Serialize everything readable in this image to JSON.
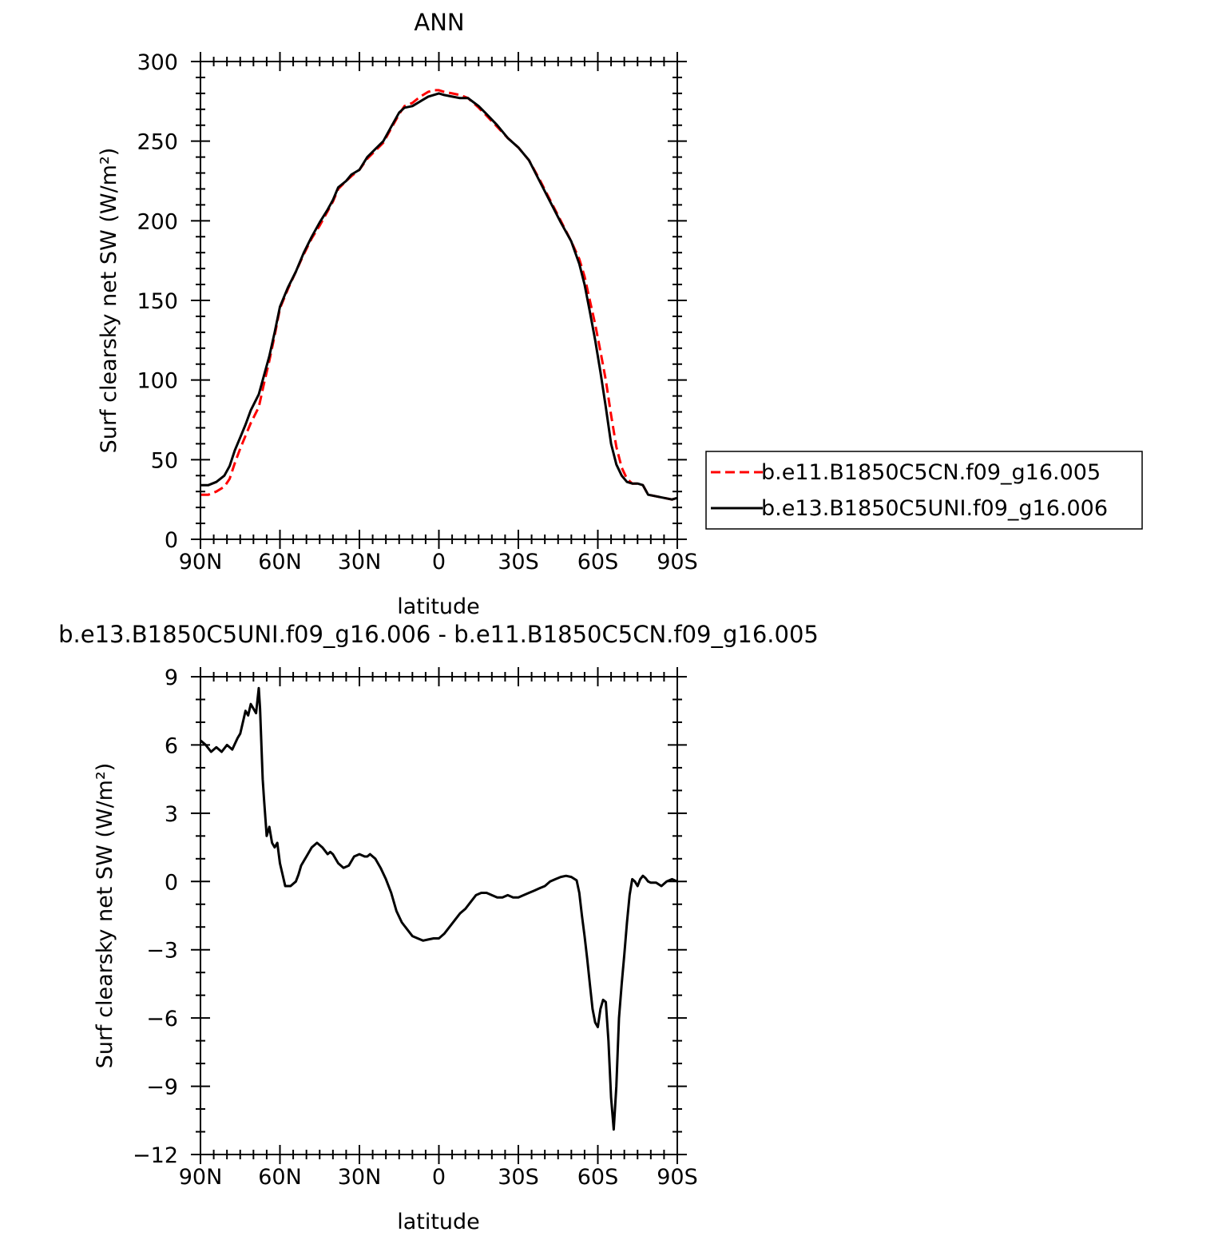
{
  "colors": {
    "control_series": "#ff0000",
    "test_series": "#000000",
    "axis": "#000000",
    "background": "#ffffff"
  },
  "chart_data": [
    {
      "type": "line",
      "title": "ANN",
      "xlabel": "latitude",
      "ylabel": "Surf clearsky net SW (W/m²)",
      "xlim": [
        90,
        -90
      ],
      "ylim": [
        0,
        300
      ],
      "x_axis_direction": "north-to-south",
      "xticks": [
        90,
        60,
        30,
        0,
        -30,
        -60,
        -90
      ],
      "xticklabels": [
        "90N",
        "60N",
        "30N",
        "0",
        "30S",
        "60S",
        "90S"
      ],
      "yticks": [
        0,
        50,
        100,
        150,
        200,
        250,
        300
      ],
      "yticklabels": [
        "0",
        "50",
        "100",
        "150",
        "200",
        "250",
        "300"
      ],
      "grid": false,
      "legend": {
        "placement": "outside-right",
        "entries": [
          "b.e11.B1850C5CN.f09_g16.005",
          "b.e13.B1850C5UNI.f09_g16.006"
        ]
      },
      "series": [
        {
          "name": "b.e11.B1850C5CN.f09_g16.005",
          "style": "dashed",
          "color": "#ff0000",
          "x": [
            90,
            87,
            84,
            81,
            79,
            77,
            75,
            73,
            71,
            68,
            66,
            64,
            62,
            60,
            57,
            54,
            51,
            48,
            45,
            42,
            40,
            38,
            35,
            33,
            30,
            27,
            24,
            21,
            18,
            15,
            13,
            10,
            7,
            4,
            2,
            0,
            -2,
            -5,
            -8,
            -11,
            -15,
            -18,
            -22,
            -26,
            -30,
            -34,
            -38,
            -42,
            -46,
            -50,
            -53,
            -55,
            -57,
            -59,
            -61,
            -63,
            -65,
            -67,
            -69,
            -71,
            -73,
            -75,
            -77,
            -79,
            -82,
            -85,
            -88,
            -90
          ],
          "y": [
            28,
            28,
            30,
            33,
            38,
            48,
            57,
            65,
            73,
            83,
            98,
            112,
            128,
            145,
            157,
            168,
            179,
            189,
            197,
            206,
            212,
            220,
            225,
            228,
            232,
            239,
            244,
            249,
            258,
            267,
            272,
            274,
            278,
            281,
            282,
            282,
            281,
            280,
            279,
            277,
            271,
            266,
            259,
            252,
            246,
            238,
            226,
            213,
            200,
            187,
            176,
            165,
            150,
            135,
            118,
            100,
            78,
            58,
            45,
            38,
            35,
            35,
            34,
            28,
            27,
            26,
            25,
            26
          ]
        },
        {
          "name": "b.e13.B1850C5UNI.f09_g16.006",
          "style": "solid",
          "color": "#000000",
          "x": [
            90,
            87,
            84,
            81,
            79,
            77,
            75,
            73,
            71,
            68,
            66,
            64,
            62,
            60,
            57,
            54,
            51,
            48,
            45,
            42,
            40,
            38,
            35,
            33,
            30,
            27,
            24,
            21,
            18,
            15,
            13,
            10,
            7,
            4,
            2,
            0,
            -2,
            -5,
            -8,
            -11,
            -15,
            -18,
            -22,
            -26,
            -30,
            -34,
            -38,
            -42,
            -46,
            -50,
            -53,
            -55,
            -57,
            -59,
            -61,
            -63,
            -65,
            -67,
            -69,
            -71,
            -73,
            -75,
            -77,
            -79,
            -82,
            -85,
            -88,
            -90
          ],
          "y": [
            34,
            34,
            36,
            40,
            46,
            56,
            64,
            72,
            81,
            91,
            103,
            115,
            130,
            146,
            158,
            168,
            180,
            190,
            199,
            207,
            213,
            221,
            225,
            229,
            232,
            240,
            245,
            250,
            259,
            268,
            271,
            272,
            275,
            278,
            279,
            280,
            279,
            278,
            277,
            277,
            272,
            267,
            260,
            252,
            246,
            238,
            225,
            212,
            199,
            187,
            173,
            160,
            143,
            125,
            105,
            83,
            60,
            47,
            40,
            36,
            35,
            35,
            34,
            28,
            27,
            26,
            25,
            26
          ]
        }
      ]
    },
    {
      "type": "line",
      "title": "b.e13.B1850C5UNI.f09_g16.006 - b.e11.B1850C5CN.f09_g16.005",
      "xlabel": "latitude",
      "ylabel": "Surf clearsky net SW (W/m²)",
      "xlim": [
        90,
        -90
      ],
      "ylim": [
        -12,
        9
      ],
      "x_axis_direction": "north-to-south",
      "xticks": [
        90,
        60,
        30,
        0,
        -30,
        -60,
        -90
      ],
      "xticklabels": [
        "90N",
        "60N",
        "30N",
        "0",
        "30S",
        "60S",
        "90S"
      ],
      "yticks": [
        -12,
        -9,
        -6,
        -3,
        0,
        3,
        6,
        9
      ],
      "yticklabels": [
        "−12",
        "−9",
        "−6",
        "−3",
        "0",
        "3",
        "6",
        "9"
      ],
      "grid": false,
      "series": [
        {
          "color": "#000000",
          "style": "solid",
          "x": [
            90,
            88,
            86,
            84,
            82,
            80,
            78,
            76,
            75,
            74,
            73,
            72,
            71,
            70,
            69,
            68,
            67.5,
            66.5,
            66,
            65,
            64,
            63,
            62,
            61,
            60,
            59,
            58,
            57,
            56,
            55,
            54,
            53,
            52,
            50,
            48,
            46,
            44,
            42,
            41,
            40,
            38,
            36,
            34,
            32,
            30,
            28,
            27,
            26,
            24,
            22,
            20,
            18,
            16,
            14,
            12,
            10,
            8,
            6,
            4,
            2,
            0,
            -2,
            -4,
            -6,
            -8,
            -10,
            -12,
            -14,
            -16,
            -18,
            -20,
            -22,
            -24,
            -26,
            -28,
            -30,
            -32,
            -34,
            -36,
            -38,
            -40,
            -42,
            -44,
            -46,
            -48,
            -50,
            -52,
            -53,
            -54,
            -55,
            -56,
            -57,
            -58,
            -59,
            -60,
            -61,
            -62,
            -63,
            -64,
            -65,
            -66,
            -67,
            -68,
            -69,
            -70,
            -71,
            -72,
            -73,
            -74,
            -75,
            -76,
            -77,
            -78,
            -79,
            -80,
            -82,
            -84,
            -86,
            -88,
            -90
          ],
          "y": [
            6.2,
            6.0,
            5.7,
            5.9,
            5.7,
            6.0,
            5.8,
            6.3,
            6.5,
            7.0,
            7.5,
            7.3,
            7.8,
            7.6,
            7.4,
            8.5,
            7.6,
            4.5,
            3.6,
            2.0,
            2.4,
            1.7,
            1.5,
            1.7,
            0.8,
            0.3,
            -0.2,
            -0.2,
            -0.2,
            -0.1,
            0.0,
            0.3,
            0.7,
            1.1,
            1.5,
            1.7,
            1.5,
            1.2,
            1.3,
            1.2,
            0.8,
            0.6,
            0.7,
            1.1,
            1.2,
            1.1,
            1.1,
            1.2,
            1.0,
            0.6,
            0.1,
            -0.5,
            -1.3,
            -1.8,
            -2.1,
            -2.4,
            -2.5,
            -2.6,
            -2.55,
            -2.5,
            -2.5,
            -2.3,
            -2.0,
            -1.7,
            -1.4,
            -1.2,
            -0.9,
            -0.6,
            -0.5,
            -0.5,
            -0.6,
            -0.7,
            -0.7,
            -0.6,
            -0.7,
            -0.7,
            -0.6,
            -0.5,
            -0.4,
            -0.3,
            -0.2,
            0.0,
            0.1,
            0.2,
            0.25,
            0.2,
            0.05,
            -0.5,
            -1.5,
            -2.4,
            -3.4,
            -4.5,
            -5.6,
            -6.2,
            -6.4,
            -5.6,
            -5.2,
            -5.3,
            -7.0,
            -9.5,
            -10.9,
            -9.0,
            -6.0,
            -4.5,
            -3.2,
            -1.8,
            -0.6,
            0.1,
            0.0,
            -0.2,
            0.1,
            0.25,
            0.15,
            0.0,
            -0.05,
            -0.05,
            -0.2,
            0.0,
            0.1,
            0.0
          ]
        }
      ]
    }
  ]
}
